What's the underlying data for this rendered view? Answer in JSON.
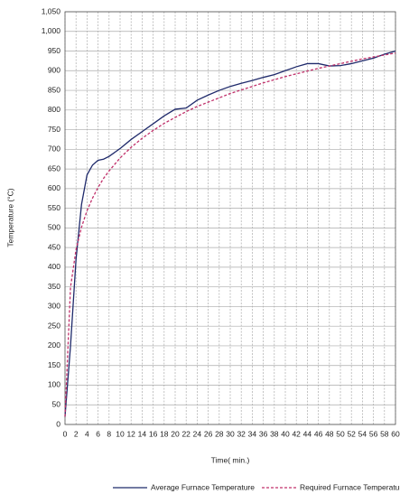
{
  "chart_data": {
    "type": "line",
    "x_label": "Time( min.)",
    "y_label": "Temperature (°C)",
    "x": [
      0,
      1,
      2,
      3,
      4,
      5,
      6,
      7,
      8,
      10,
      12,
      14,
      16,
      18,
      20,
      22,
      24,
      26,
      28,
      30,
      32,
      34,
      36,
      38,
      40,
      42,
      44,
      46,
      48,
      50,
      52,
      54,
      56,
      58,
      60
    ],
    "series": [
      {
        "name": "Average Furnace Temperature",
        "color": "#1f2a6b",
        "dash": false,
        "values": [
          20,
          200,
          420,
          560,
          635,
          660,
          672,
          675,
          682,
          702,
          725,
          745,
          765,
          785,
          802,
          805,
          825,
          838,
          850,
          860,
          868,
          875,
          883,
          890,
          900,
          910,
          918,
          918,
          912,
          913,
          918,
          925,
          932,
          942,
          950
        ]
      },
      {
        "name": "Required Furnace Temperature",
        "color": "#c0306a",
        "dash": true,
        "values": [
          20,
          349,
          445,
          502,
          544,
          576,
          603,
          626,
          645,
          678,
          705,
          728,
          748,
          766,
          781,
          796,
          809,
          820,
          831,
          842,
          851,
          860,
          869,
          877,
          885,
          892,
          899,
          906,
          912,
          918,
          924,
          930,
          935,
          940,
          945
        ]
      }
    ],
    "xlim": [
      0,
      60
    ],
    "xticks": [
      0,
      2,
      4,
      6,
      8,
      10,
      12,
      14,
      16,
      18,
      20,
      22,
      24,
      26,
      28,
      30,
      32,
      34,
      36,
      38,
      40,
      42,
      44,
      46,
      48,
      50,
      52,
      54,
      56,
      58,
      60
    ],
    "ylim": [
      0,
      1050
    ],
    "yticks": [
      0,
      50,
      100,
      150,
      200,
      250,
      300,
      350,
      400,
      450,
      500,
      550,
      600,
      650,
      700,
      750,
      800,
      850,
      900,
      950,
      {
        "value": 1000,
        "label": "1,000"
      },
      {
        "value": 1050,
        "label": "1,050"
      }
    ],
    "grid": true,
    "legend": "bottom"
  }
}
